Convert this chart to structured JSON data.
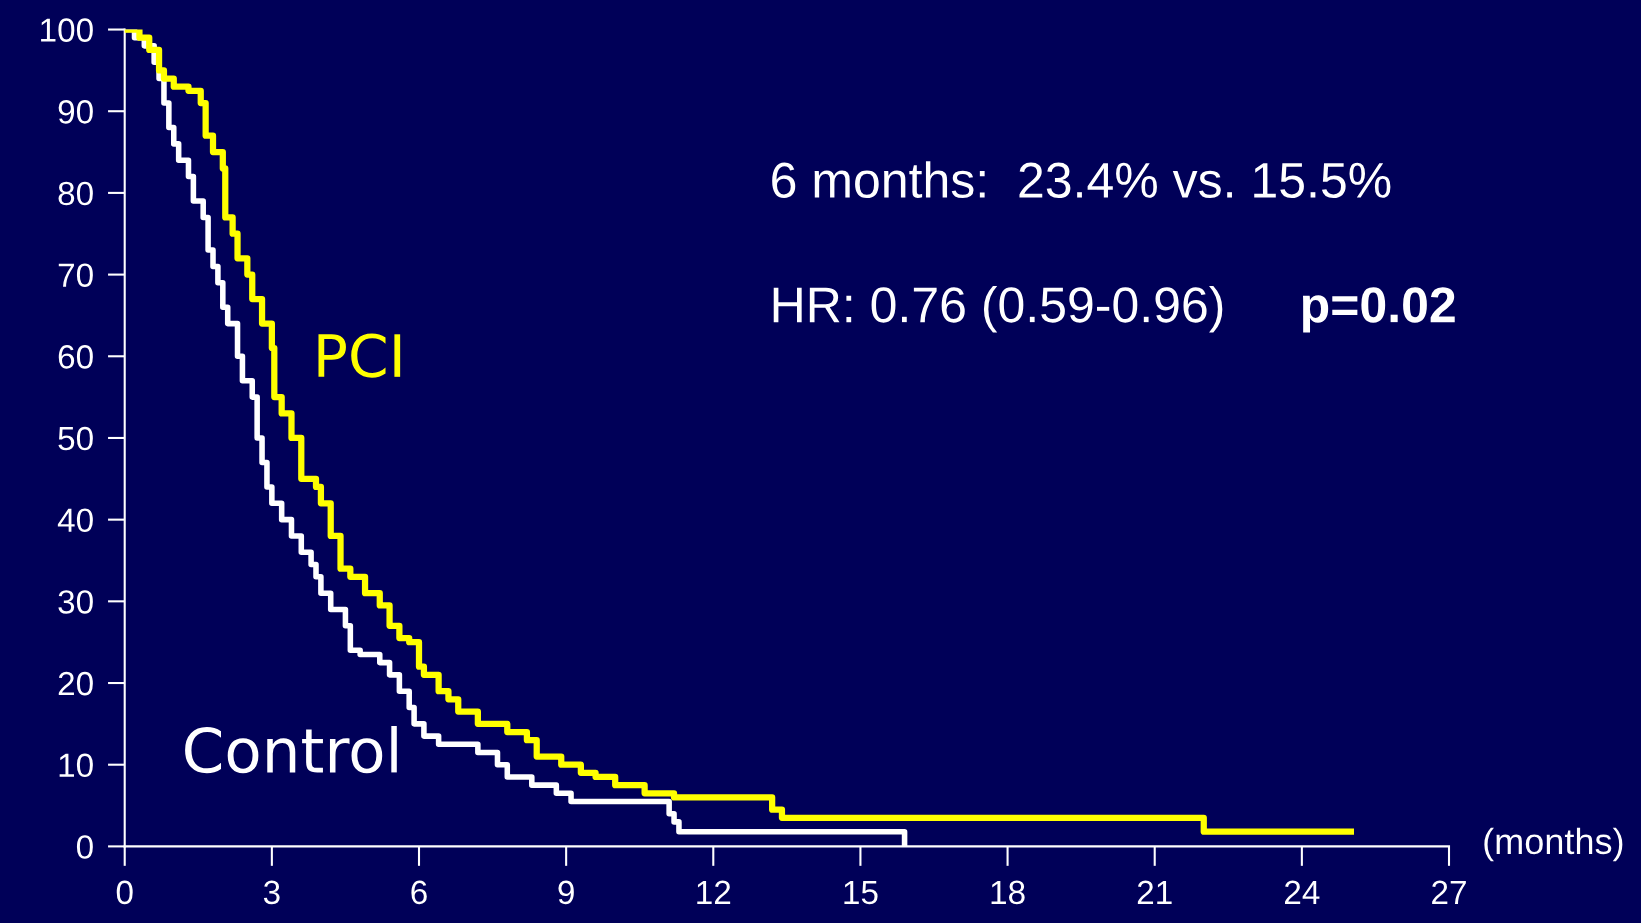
{
  "chart_data": {
    "type": "step",
    "xlabel": "(months)",
    "xlim": [
      0,
      27
    ],
    "xticks": [
      0,
      3,
      6,
      9,
      12,
      15,
      18,
      21,
      24,
      27
    ],
    "ylim": [
      0,
      100
    ],
    "yticks": [
      0,
      10,
      20,
      30,
      40,
      50,
      60,
      70,
      80,
      90,
      100
    ],
    "grid": false,
    "legend": "bottom left",
    "line_style": "solid",
    "marker": "none",
    "annotations": [
      "6 months:  23.4% vs. 15.5%",
      "HR: 0.76 (0.59-0.96)",
      "p=0.02"
    ],
    "series": [
      {
        "name": "PCI",
        "color": "#ffff00",
        "x": [
          0,
          0.3,
          0.5,
          0.7,
          0.8,
          1.0,
          1.3,
          1.55,
          1.65,
          1.8,
          2.0,
          2.05,
          2.2,
          2.3,
          2.5,
          2.6,
          2.8,
          3.0,
          3.05,
          3.2,
          3.4,
          3.6,
          3.9,
          4.0,
          4.2,
          4.4,
          4.6,
          4.9,
          5.2,
          5.4,
          5.6,
          5.8,
          6.0,
          6.1,
          6.4,
          6.6,
          6.8,
          7.2,
          7.8,
          8.2,
          8.4,
          8.9,
          9.3,
          9.6,
          10.0,
          10.6,
          11.2,
          13.2,
          13.4,
          22.0,
          25.0
        ],
        "values": [
          100,
          99,
          97.5,
          95,
          94,
          93,
          92.5,
          91,
          87,
          85,
          83,
          77,
          75,
          72,
          70,
          67,
          64,
          61,
          55,
          53,
          50,
          45,
          44,
          42,
          38,
          34,
          33,
          31,
          29.5,
          27,
          25.5,
          25,
          22,
          21,
          19,
          18,
          16.5,
          15,
          14,
          13,
          11,
          10,
          9,
          8.5,
          7.5,
          6.5,
          6,
          4.5,
          3.5,
          1.8,
          1.8
        ]
      },
      {
        "name": "Control",
        "color": "#ffffff",
        "x": [
          0,
          0.2,
          0.4,
          0.6,
          0.7,
          0.8,
          0.9,
          1.0,
          1.1,
          1.3,
          1.4,
          1.6,
          1.7,
          1.8,
          1.9,
          2.0,
          2.1,
          2.3,
          2.4,
          2.6,
          2.7,
          2.8,
          2.9,
          3.0,
          3.2,
          3.4,
          3.6,
          3.8,
          3.9,
          4.0,
          4.2,
          4.5,
          4.6,
          4.8,
          5.2,
          5.4,
          5.6,
          5.8,
          5.9,
          6.1,
          6.4,
          7.2,
          7.6,
          7.8,
          8.3,
          8.8,
          9.1,
          11.1,
          11.2,
          11.3,
          15.9,
          15.9
        ],
        "values": [
          100,
          99,
          98,
          96,
          94,
          91,
          88,
          86,
          84,
          82,
          79,
          77,
          73,
          71,
          69,
          66,
          64,
          60,
          57,
          55,
          50,
          47,
          44,
          42,
          40,
          38,
          36,
          34.5,
          33,
          31,
          29,
          27,
          24,
          23.5,
          22.5,
          21,
          19,
          17,
          15,
          13.5,
          12.5,
          11.5,
          10,
          8.5,
          7.5,
          6.5,
          5.5,
          4,
          3,
          1.8,
          1.8,
          0
        ]
      }
    ]
  }
}
